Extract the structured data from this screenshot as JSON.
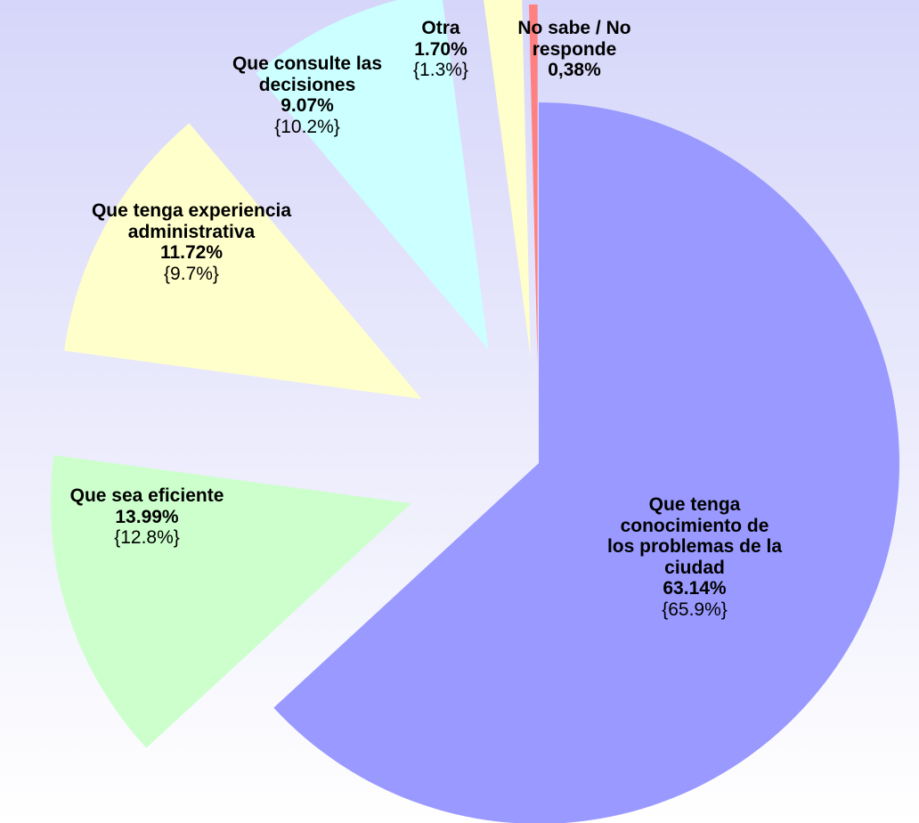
{
  "chart_data": {
    "type": "pie",
    "categories": [
      "Que tenga conocimiento de los problemas de la ciudad",
      "Que sea eficiente",
      "Que tenga experiencia administrativa",
      "Que consulte las decisiones",
      "Otra",
      "No sabe / No responde"
    ],
    "values": [
      63.14,
      13.99,
      11.72,
      9.07,
      1.7,
      0.38
    ],
    "value_labels": [
      "63.14%",
      "13.99%",
      "11.72%",
      "9.07%",
      "1.70%",
      "0,38%"
    ],
    "secondary_labels": [
      "{65.9%}",
      "{12.8%}",
      "{9.7%}",
      "{10.2%}",
      "{1.3%}",
      null
    ],
    "colors": [
      "#9999ff",
      "#ccffcc",
      "#ffffcc",
      "#ccffff",
      "#ffffcc",
      "#ff8080"
    ]
  }
}
